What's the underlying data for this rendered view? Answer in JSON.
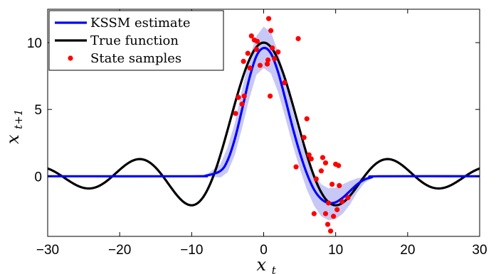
{
  "chart_data": {
    "type": "line",
    "xlabel": {
      "base": "x",
      "sub": "t"
    },
    "ylabel": {
      "base": "x",
      "sub": "t+1"
    },
    "xlim": [
      -30,
      30
    ],
    "ylim": [
      -4.5,
      12.5
    ],
    "xticks": [
      -30,
      -20,
      -10,
      0,
      10,
      20,
      30
    ],
    "yticks": [
      0,
      5,
      10
    ],
    "xtick_labels": [
      "−30",
      "−20",
      "−10",
      "0",
      "10",
      "20",
      "30"
    ],
    "ytick_labels": [
      "0",
      "5",
      "10"
    ],
    "grid": false,
    "legend_position": "top-left",
    "colors": {
      "estimate": "#0000ff",
      "band": "#c8c8f6",
      "true": "#000000",
      "samples": "#ff0000"
    },
    "series": [
      {
        "name": "KSSM estimate",
        "kind": "line",
        "x": [
          -30,
          -10,
          -8,
          -6,
          -5,
          -4,
          -3,
          -2,
          -1,
          0,
          1,
          2,
          3,
          4,
          5,
          6,
          7,
          8,
          9,
          10,
          11,
          12,
          13,
          14,
          15,
          16,
          30
        ],
        "y": [
          0,
          0,
          0.05,
          0.4,
          1.2,
          2.8,
          5.0,
          7.3,
          9.0,
          9.6,
          9.2,
          7.8,
          5.8,
          3.7,
          1.8,
          0.2,
          -1.0,
          -1.7,
          -2.0,
          -1.95,
          -1.6,
          -1.1,
          -0.6,
          -0.25,
          -0.08,
          0,
          0
        ]
      },
      {
        "name": "confidence band",
        "kind": "band",
        "x": [
          -30,
          -10,
          -8,
          -6,
          -5,
          -4,
          -3,
          -2,
          -1,
          0,
          1,
          2,
          3,
          4,
          5,
          6,
          7,
          8,
          9,
          10,
          11,
          12,
          13,
          14,
          15,
          16,
          30
        ],
        "upper": [
          0,
          0,
          0.1,
          0.9,
          2.2,
          4.0,
          6.5,
          8.8,
          10.5,
          11.2,
          10.8,
          9.3,
          7.2,
          5.0,
          3.0,
          1.4,
          0.2,
          -0.6,
          -0.9,
          -0.85,
          -0.6,
          -0.35,
          -0.15,
          -0.05,
          0,
          0,
          0
        ],
        "lower": [
          0,
          0,
          0,
          -0.1,
          0.3,
          1.6,
          3.6,
          5.8,
          7.6,
          8.1,
          7.7,
          6.3,
          4.4,
          2.4,
          0.6,
          -1.0,
          -2.2,
          -3.0,
          -3.3,
          -3.2,
          -2.8,
          -2.1,
          -1.2,
          -0.5,
          -0.15,
          0,
          0
        ]
      },
      {
        "name": "True function",
        "kind": "line",
        "formula": "10*sinc(x/7)",
        "x_range": [
          -30,
          30
        ]
      },
      {
        "name": "State samples",
        "kind": "scatter",
        "points": [
          [
            -3.9,
            4.7
          ],
          [
            -3.5,
            5.9
          ],
          [
            -3.0,
            5.4
          ],
          [
            -2.8,
            8.6
          ],
          [
            -2.7,
            6.0
          ],
          [
            -2.2,
            9.2
          ],
          [
            -1.9,
            8.1
          ],
          [
            -1.7,
            10.5
          ],
          [
            -1.3,
            10.2
          ],
          [
            -1.0,
            9.5
          ],
          [
            -0.9,
            10.1
          ],
          [
            -0.5,
            8.3
          ],
          [
            0.5,
            8.4
          ],
          [
            0.6,
            8.7
          ],
          [
            0.7,
            11.8
          ],
          [
            0.9,
            6.0
          ],
          [
            1.0,
            10.9
          ],
          [
            1.2,
            9.6
          ],
          [
            1.5,
            8.8
          ],
          [
            2.0,
            9.3
          ],
          [
            2.9,
            7.0
          ],
          [
            4.5,
            0.7
          ],
          [
            4.8,
            10.3
          ],
          [
            5.6,
            2.9
          ],
          [
            6.0,
            4.3
          ],
          [
            6.3,
            1.6
          ],
          [
            6.6,
            1.3
          ],
          [
            7.0,
            -2.8
          ],
          [
            7.3,
            -0.2
          ],
          [
            8.0,
            0.4
          ],
          [
            8.2,
            1.4
          ],
          [
            8.6,
            1.0
          ],
          [
            8.9,
            -3.6
          ],
          [
            8.6,
            -2.8
          ],
          [
            9.0,
            -2.0
          ],
          [
            9.3,
            -4.1
          ],
          [
            9.5,
            -0.6
          ],
          [
            9.7,
            -3.0
          ],
          [
            10.0,
            0.9
          ],
          [
            10.4,
            0.8
          ],
          [
            10.5,
            -0.7
          ],
          [
            10.9,
            -1.9
          ],
          [
            11.7,
            -1.6
          ],
          [
            10.2,
            -2.5
          ]
        ]
      }
    ]
  }
}
